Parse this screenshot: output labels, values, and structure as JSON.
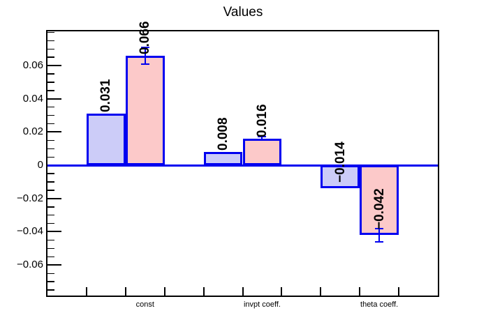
{
  "chart_data": {
    "type": "bar",
    "title": "Values",
    "categories": [
      "const",
      "invpt coeff.",
      "theta coeff."
    ],
    "series": [
      {
        "name": "blue-series",
        "fill": "#ccccf8",
        "values": [
          0.031,
          0.008,
          -0.014
        ],
        "errors": [
          0,
          0,
          0
        ],
        "labels": [
          "0.031",
          "0.008",
          "−0.014"
        ]
      },
      {
        "name": "pink-series",
        "fill": "#fcc9c9",
        "values": [
          0.066,
          0.016,
          -0.042
        ],
        "errors": [
          0.005,
          0.001,
          0.004
        ],
        "labels": [
          "0.066",
          "0.016",
          "−0.042"
        ]
      }
    ],
    "x_axis": {
      "n_bins": 10,
      "pair_start_bins": [
        1,
        4,
        7
      ],
      "label_bins": [
        2,
        5,
        8
      ]
    },
    "y_axis": {
      "ylim": [
        -0.0784,
        0.0805
      ],
      "major_tick_values": [
        0.06,
        0.04,
        0.02,
        0,
        -0.02,
        -0.04,
        -0.06
      ],
      "major_tick_labels": [
        "0.06",
        "0.04",
        "0.02",
        "0",
        "−0.02",
        "−0.04",
        "−0.06"
      ],
      "minor_step": 0.005
    },
    "zero_line_value": 0,
    "grid": "off",
    "legend": "none",
    "colors": {
      "bar_border": "#0000f0",
      "zero_line": "#0000f0",
      "error_bar": "#0000f0",
      "frame_border": "#000000",
      "text": "#000000",
      "background": "#ffffff"
    }
  }
}
